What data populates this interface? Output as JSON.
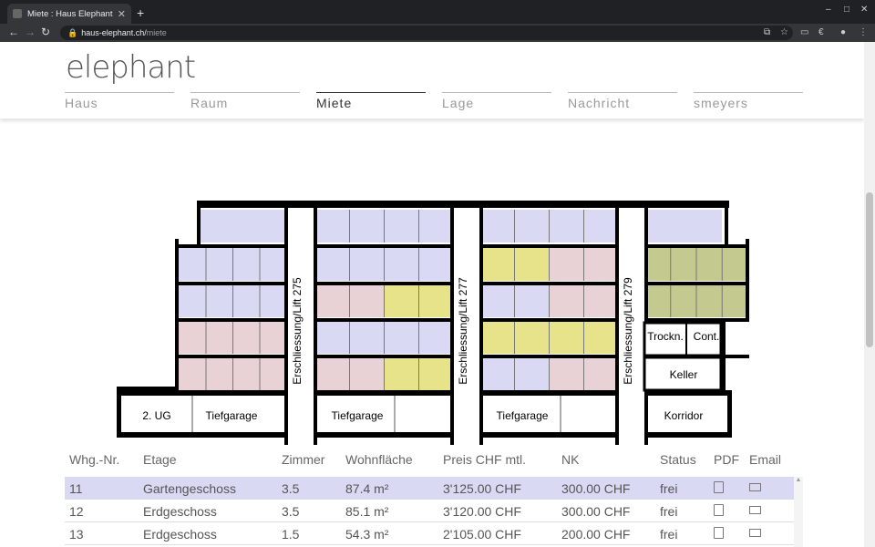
{
  "browser": {
    "tab_title": "Miete : Haus Elephant",
    "new_tab": "+",
    "close_tab": "✕",
    "url_host": "haus-elephant.ch/",
    "url_path": "miete"
  },
  "site": {
    "logo": "elephant",
    "nav": [
      "Haus",
      "Raum",
      "Miete",
      "Lage",
      "Nachricht",
      "smeyers"
    ],
    "active_nav": "Miete"
  },
  "floorplan": {
    "shafts": [
      "Erschliessung/Lift 275",
      "Erschliessung/Lift 277",
      "Erschliessung/Lift 279"
    ],
    "labels": {
      "ug": "2. UG",
      "tiefgarage": "Tiefgarage",
      "trockn": "Trockn.",
      "cont": "Cont.",
      "keller": "Keller",
      "korridor": "Korridor"
    },
    "colors": {
      "blue": "#d9d9f4",
      "pink": "#e9d2d6",
      "yellow": "#e6e38a",
      "green": "#c3c98f",
      "walls": "#000000"
    }
  },
  "table": {
    "headers": [
      "Whg.-Nr.",
      "Etage",
      "Zimmer",
      "Wohnfläche",
      "Preis CHF mtl.",
      "NK",
      "Status",
      "PDF",
      "Email"
    ],
    "rows": [
      {
        "nr": "11",
        "etage": "Gartengeschoss",
        "zimmer": "3.5",
        "flaeche": "87.4 m²",
        "preis": "3'125.00 CHF",
        "nk": "300.00 CHF",
        "status": "frei"
      },
      {
        "nr": "12",
        "etage": "Erdgeschoss",
        "zimmer": "3.5",
        "flaeche": "85.1 m²",
        "preis": "3'120.00 CHF",
        "nk": "300.00 CHF",
        "status": "frei"
      },
      {
        "nr": "13",
        "etage": "Erdgeschoss",
        "zimmer": "1.5",
        "flaeche": "54.3 m²",
        "preis": "2'105.00 CHF",
        "nk": "200.00 CHF",
        "status": "frei"
      }
    ]
  }
}
